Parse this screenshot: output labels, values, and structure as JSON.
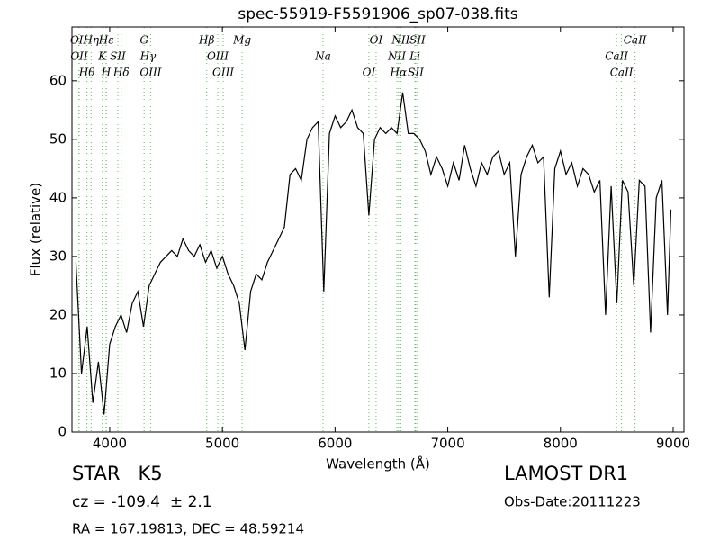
{
  "chart_data": {
    "type": "line",
    "title": "spec-55919-F5591906_sp07-038.fits",
    "x_label": "Wavelength (Å)",
    "y_label": "Flux (relative)",
    "xlim": [
      3665,
      9096
    ],
    "ylim": [
      0,
      69.2
    ],
    "xticks": [
      4000,
      5000,
      6000,
      7000,
      8000,
      9000
    ],
    "yticks": [
      0,
      10,
      20,
      30,
      40,
      50,
      60
    ],
    "x": [
      3700,
      3750,
      3800,
      3850,
      3900,
      3950,
      4000,
      4050,
      4100,
      4150,
      4200,
      4250,
      4300,
      4350,
      4400,
      4450,
      4500,
      4550,
      4600,
      4650,
      4700,
      4750,
      4800,
      4850,
      4900,
      4950,
      5000,
      5050,
      5100,
      5150,
      5200,
      5250,
      5300,
      5350,
      5400,
      5450,
      5500,
      5550,
      5600,
      5650,
      5700,
      5750,
      5800,
      5850,
      5900,
      5950,
      6000,
      6050,
      6100,
      6150,
      6200,
      6250,
      6300,
      6350,
      6400,
      6450,
      6500,
      6550,
      6600,
      6650,
      6700,
      6750,
      6800,
      6850,
      6900,
      6950,
      7000,
      7050,
      7100,
      7150,
      7200,
      7250,
      7300,
      7350,
      7400,
      7450,
      7500,
      7550,
      7600,
      7650,
      7700,
      7750,
      7800,
      7850,
      7900,
      7950,
      8000,
      8050,
      8100,
      8150,
      8200,
      8250,
      8300,
      8350,
      8400,
      8450,
      8500,
      8550,
      8600,
      8650,
      8700,
      8750,
      8800,
      8850,
      8900,
      8950,
      8980
    ],
    "series": [
      {
        "color": "#000000",
        "values": [
          29,
          10,
          18,
          5,
          12,
          3,
          15,
          18,
          20,
          17,
          22,
          24,
          18,
          25,
          27,
          29,
          30,
          31,
          30,
          33,
          31,
          30,
          32,
          29,
          31,
          28,
          30,
          27,
          25,
          22,
          14,
          24,
          27,
          26,
          29,
          31,
          33,
          35,
          44,
          45,
          43,
          50,
          52,
          53,
          24,
          51,
          54,
          52,
          53,
          55,
          52,
          51,
          37,
          50,
          52,
          51,
          52,
          51,
          58,
          51,
          51,
          50,
          48,
          44,
          47,
          45,
          42,
          46,
          43,
          49,
          45,
          42,
          46,
          44,
          47,
          48,
          44,
          46,
          30,
          44,
          47,
          49,
          46,
          47,
          23,
          45,
          48,
          44,
          46,
          42,
          45,
          44,
          41,
          43,
          20,
          42,
          22,
          43,
          41,
          25,
          43,
          42,
          17,
          40,
          43,
          20,
          38
        ]
      }
    ],
    "line_color": "#66bb66",
    "lines": [
      {
        "name": "OII",
        "x": 3726
      },
      {
        "name": "OII",
        "x": 3729
      },
      {
        "name": "Hθ",
        "x": 3798
      },
      {
        "name": "Hη",
        "x": 3835
      },
      {
        "name": "K",
        "x": 3934
      },
      {
        "name": "H",
        "x": 3968
      },
      {
        "name": "Hε",
        "x": 3970
      },
      {
        "name": "SII",
        "x": 4072
      },
      {
        "name": "Hδ",
        "x": 4102
      },
      {
        "name": "G",
        "x": 4305
      },
      {
        "name": "Hγ",
        "x": 4340
      },
      {
        "name": "OIII",
        "x": 4363
      },
      {
        "name": "Hβ",
        "x": 4861
      },
      {
        "name": "OIII",
        "x": 4959
      },
      {
        "name": "OIII",
        "x": 5007
      },
      {
        "name": "Mg",
        "x": 5175
      },
      {
        "name": "Na",
        "x": 5893
      },
      {
        "name": "OI",
        "x": 6300
      },
      {
        "name": "OI",
        "x": 6364
      },
      {
        "name": "NII",
        "x": 6548
      },
      {
        "name": "Hα",
        "x": 6563
      },
      {
        "name": "NII",
        "x": 6583
      },
      {
        "name": "Li",
        "x": 6708
      },
      {
        "name": "SII",
        "x": 6716
      },
      {
        "name": "SII",
        "x": 6731
      },
      {
        "name": "CaII",
        "x": 8498
      },
      {
        "name": "CaII",
        "x": 8542
      },
      {
        "name": "CaII",
        "x": 8662
      }
    ],
    "object_class": "STAR   K5",
    "redshift": "cz = -109.4  ± 2.1",
    "coordinates": "RA = 167.19813, DEC = 48.59214",
    "survey": "LAMOST DR1",
    "obs_date": "Obs-Date:20111223"
  }
}
